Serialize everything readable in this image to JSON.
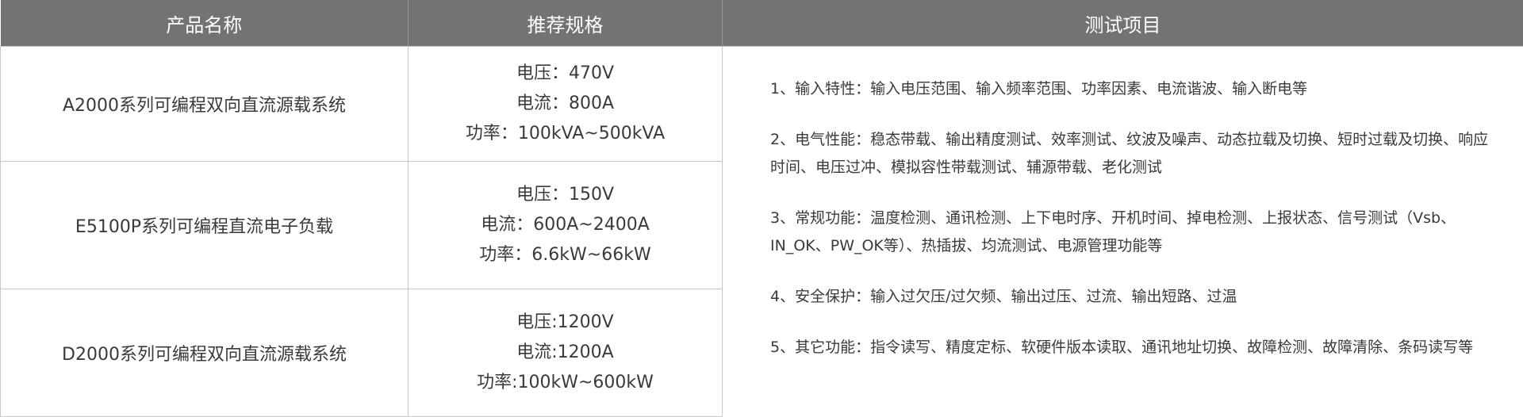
{
  "header": {
    "col_name": "产品名称",
    "col_spec": "推荐规格",
    "col_tests": "测试项目"
  },
  "products": [
    {
      "name": "A2000系列可编程双向直流源载系统",
      "spec": [
        "电压：470V",
        "电流：800A",
        "功率：100kVA~500kVA"
      ]
    },
    {
      "name": "E5100P系列可编程直流电子负载",
      "spec": [
        "电压：150V",
        "电流：600A~2400A",
        "功率：6.6kW~66kW"
      ]
    },
    {
      "name": "D2000系列可编程双向直流源载系统",
      "spec": [
        "电压:1200V",
        "电流:1200A",
        "功率:100kW~600kW"
      ]
    }
  ],
  "tests": [
    "1、输入特性：输入电压范围、输入频率范围、功率因素、电流谐波、输入断电等",
    "2、电气性能：稳态带载、输出精度测试、效率测试、纹波及噪声、动态拉载及切换、短时过载及切换、响应时间、电压过冲、模拟容性带载测试、辅源带载、老化测试",
    "3、常规功能：温度检测、通讯检测、上下电时序、开机时间、掉电检测、上报状态、信号测试（Vsb、IN_OK、PW_OK等）、热插拔、均流测试、电源管理功能等",
    "4、安全保护：输入过欠压/过欠频、输出过压、过流、输出短路、过温",
    "5、其它功能：指令读写、精度定标、软硬件版本读取、通讯地址切换、故障检测、故障清除、条码读写等"
  ]
}
